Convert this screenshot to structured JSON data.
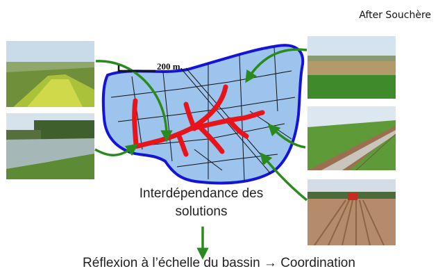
{
  "credit": "After Souchère",
  "scale_label": "200 m.",
  "caption_line1": "Interdépendance des",
  "caption_line2": "solutions",
  "conclusion": "Réflexion à l’échelle du bassin → Coordination",
  "colors": {
    "basin_fill": "#9cc4ec",
    "basin_border": "#1414d8",
    "waterways": "#e8141c",
    "arrows": "#2a8a1e"
  },
  "photos": [
    {
      "name": "photo-grass-strip",
      "subject": "grass-buffer-strip"
    },
    {
      "name": "photo-flooded-field",
      "subject": "flooded-field"
    },
    {
      "name": "photo-wheat-field",
      "subject": "crop-field"
    },
    {
      "name": "photo-fenced-furrows",
      "subject": "furrowed-field-with-fence"
    },
    {
      "name": "photo-ploughed-field",
      "subject": "ploughed-field-with-tractor"
    }
  ]
}
